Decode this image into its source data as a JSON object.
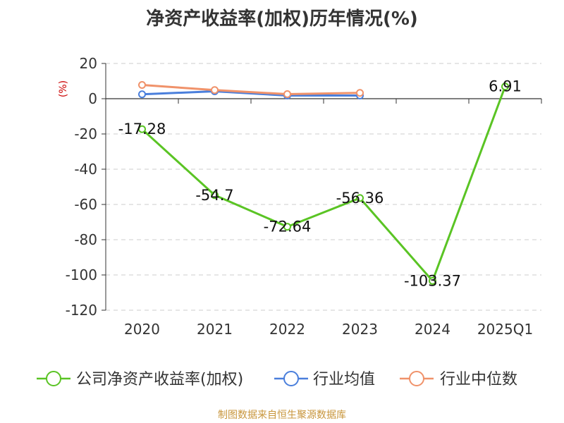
{
  "chart_data": {
    "type": "line",
    "title": "净资产收益率(加权)历年情况(%)",
    "ylabel": "(%)",
    "categories": [
      "2020",
      "2021",
      "2022",
      "2023",
      "2024",
      "2025Q1"
    ],
    "ylim": [
      -120,
      20
    ],
    "yticks": [
      20,
      0,
      -20,
      -40,
      -60,
      -80,
      -100,
      -120
    ],
    "grid": true,
    "legend_position": "bottom",
    "series": [
      {
        "name": "公司净资产收益率(加权)",
        "color": "#5ac424",
        "values": [
          -17.28,
          -54.7,
          -72.64,
          -56.36,
          -103.37,
          6.91
        ],
        "labels": [
          "-17.28",
          "-54.7",
          "-72.64",
          "-56.36",
          "-103.37",
          "6.91"
        ]
      },
      {
        "name": "行业均值",
        "color": "#4a7fdc",
        "values": [
          2.5,
          4.2,
          1.8,
          1.8,
          null,
          null
        ]
      },
      {
        "name": "行业中位数",
        "color": "#f0926a",
        "values": [
          7.8,
          4.9,
          2.6,
          3.3,
          null,
          null
        ]
      }
    ]
  },
  "source_note": "制图数据来自恒生聚源数据库"
}
